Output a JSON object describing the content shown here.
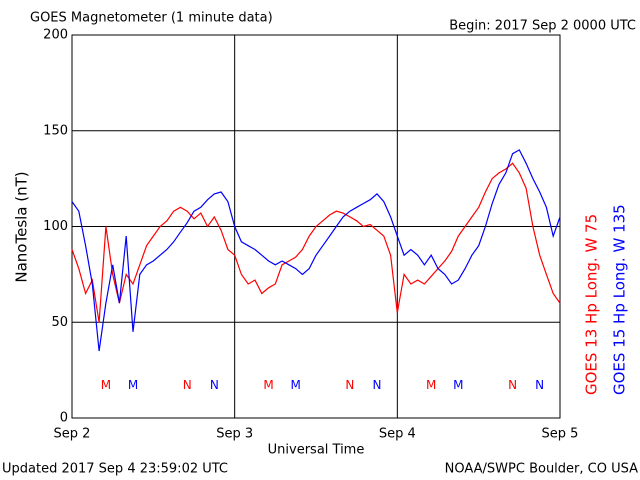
{
  "chart_data": {
    "type": "line",
    "title": "GOES Magnetometer (1 minute data)",
    "subtitle": "Begin:  2017 Sep 2 0000 UTC",
    "y_label": "NanoTesla (nT)",
    "x_label": "Universal Time",
    "footer_left": "Updated 2017 Sep  4 23:59:02 UTC",
    "footer_right": "NOAA/SWPC Boulder, CO USA",
    "xlim": [
      0,
      72
    ],
    "xticks": [
      {
        "value": 0,
        "label": "Sep 2"
      },
      {
        "value": 24,
        "label": "Sep 3"
      },
      {
        "value": 48,
        "label": "Sep 4"
      },
      {
        "value": 72,
        "label": "Sep 5"
      }
    ],
    "ylim": [
      0,
      200
    ],
    "yticks": [
      0,
      50,
      100,
      150,
      200
    ],
    "grid": true,
    "x": [
      0,
      1,
      2,
      3,
      4,
      5,
      6,
      7,
      8,
      9,
      10,
      11,
      12,
      13,
      14,
      15,
      16,
      17,
      18,
      19,
      20,
      21,
      22,
      23,
      24,
      25,
      26,
      27,
      28,
      29,
      30,
      31,
      32,
      33,
      34,
      35,
      36,
      37,
      38,
      39,
      40,
      41,
      42,
      43,
      44,
      45,
      46,
      47,
      48,
      49,
      50,
      51,
      52,
      53,
      54,
      55,
      56,
      57,
      58,
      59,
      60,
      61,
      62,
      63,
      64,
      65,
      66,
      67,
      68,
      69,
      70,
      71,
      72
    ],
    "series": [
      {
        "name": "GOES 13 Hp  Long. W 75",
        "color": "#ff0000",
        "values": [
          88,
          78,
          65,
          72,
          50,
          100,
          75,
          60,
          75,
          70,
          80,
          90,
          95,
          100,
          103,
          108,
          110,
          108,
          104,
          107,
          100,
          105,
          98,
          88,
          85,
          75,
          70,
          72,
          65,
          68,
          70,
          80,
          82,
          84,
          88,
          95,
          100,
          103,
          106,
          108,
          107,
          105,
          103,
          100,
          101,
          98,
          95,
          85,
          55,
          75,
          70,
          72,
          70,
          74,
          78,
          82,
          87,
          95,
          100,
          105,
          110,
          118,
          125,
          128,
          130,
          133,
          128,
          120,
          100,
          85,
          75,
          65,
          60
        ]
      },
      {
        "name": "GOES 15 Hp  Long. W 135",
        "color": "#0000ff",
        "values": [
          113,
          108,
          90,
          70,
          35,
          60,
          80,
          60,
          95,
          45,
          75,
          80,
          82,
          85,
          88,
          92,
          97,
          102,
          108,
          110,
          114,
          117,
          118,
          113,
          100,
          92,
          90,
          88,
          85,
          82,
          80,
          82,
          80,
          78,
          75,
          78,
          85,
          90,
          95,
          100,
          105,
          108,
          110,
          112,
          114,
          117,
          113,
          105,
          95,
          85,
          88,
          85,
          80,
          85,
          78,
          75,
          70,
          72,
          78,
          85,
          90,
          100,
          112,
          122,
          128,
          138,
          140,
          133,
          125,
          118,
          110,
          95,
          105
        ]
      }
    ],
    "annotations": [
      {
        "text": "M",
        "x": 5,
        "y": 17,
        "color": "#ff0000"
      },
      {
        "text": "M",
        "x": 9,
        "y": 17,
        "color": "#0000ff"
      },
      {
        "text": "N",
        "x": 17,
        "y": 17,
        "color": "#ff0000"
      },
      {
        "text": "N",
        "x": 21,
        "y": 17,
        "color": "#0000ff"
      },
      {
        "text": "M",
        "x": 29,
        "y": 17,
        "color": "#ff0000"
      },
      {
        "text": "M",
        "x": 33,
        "y": 17,
        "color": "#0000ff"
      },
      {
        "text": "N",
        "x": 41,
        "y": 17,
        "color": "#ff0000"
      },
      {
        "text": "N",
        "x": 45,
        "y": 17,
        "color": "#0000ff"
      },
      {
        "text": "M",
        "x": 53,
        "y": 17,
        "color": "#ff0000"
      },
      {
        "text": "M",
        "x": 57,
        "y": 17,
        "color": "#0000ff"
      },
      {
        "text": "N",
        "x": 65,
        "y": 17,
        "color": "#ff0000"
      },
      {
        "text": "N",
        "x": 69,
        "y": 17,
        "color": "#0000ff"
      }
    ]
  }
}
